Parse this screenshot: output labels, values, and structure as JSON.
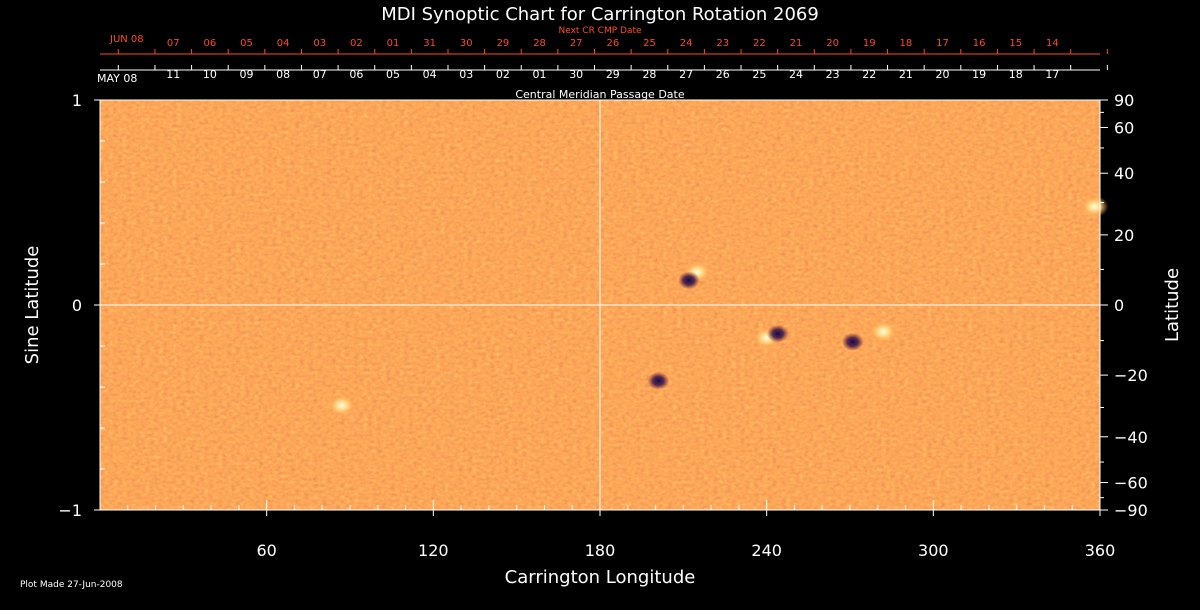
{
  "chart_data": {
    "type": "heatmap",
    "title": "MDI Synoptic Chart for Carrington Rotation 2069",
    "xlabel": "Carrington Longitude",
    "ylabel_left": "Sine Latitude",
    "ylabel_right": "Latitude",
    "xlim": [
      0,
      360
    ],
    "ylim": [
      -1,
      1
    ],
    "x_ticks": [
      60,
      120,
      180,
      240,
      300,
      360
    ],
    "y_ticks_left": [
      {
        "v": 1,
        "label": "1"
      },
      {
        "v": 0,
        "label": "0"
      },
      {
        "v": -1,
        "label": "−1"
      }
    ],
    "y_ticks_right": [
      "90",
      "60",
      "40",
      "20",
      "0",
      "−20",
      "−40",
      "−60",
      "−90"
    ],
    "top_axis_label": "Central Meridian Passage Date",
    "top_axis_start_label": "MAY 08",
    "top_axis_dates": [
      "11",
      "10",
      "09",
      "08",
      "07",
      "06",
      "05",
      "04",
      "03",
      "02",
      "01",
      "30",
      "29",
      "28",
      "27",
      "26",
      "25",
      "24",
      "23",
      "22",
      "21",
      "20",
      "19",
      "18",
      "17"
    ],
    "next_axis_label": "Next CR CMP Date",
    "next_axis_start_label": "JUN 08",
    "next_axis_dates": [
      "07",
      "06",
      "05",
      "04",
      "03",
      "02",
      "01",
      "31",
      "30",
      "29",
      "28",
      "27",
      "26",
      "25",
      "24",
      "23",
      "22",
      "21",
      "20",
      "19",
      "18",
      "17",
      "16",
      "15",
      "14"
    ],
    "grid_lines": {
      "x": 180,
      "y": 0
    },
    "colors": {
      "background": "#000000",
      "field": "#f0581a",
      "positive": "#fff3b0",
      "negative": "#1a1050",
      "next_axis": "#ff4a1c"
    },
    "features": [
      {
        "lon": 215,
        "sinlat": 0.16,
        "polarity": "positive",
        "label": ""
      },
      {
        "lon": 212,
        "sinlat": 0.12,
        "polarity": "negative",
        "label": ""
      },
      {
        "lon": 240,
        "sinlat": -0.16,
        "polarity": "positive",
        "label": ""
      },
      {
        "lon": 244,
        "sinlat": -0.14,
        "polarity": "negative",
        "label": ""
      },
      {
        "lon": 271,
        "sinlat": -0.18,
        "polarity": "negative",
        "label": ""
      },
      {
        "lon": 282,
        "sinlat": -0.13,
        "polarity": "positive",
        "label": ""
      },
      {
        "lon": 201,
        "sinlat": -0.37,
        "polarity": "negative",
        "label": ""
      },
      {
        "lon": 87,
        "sinlat": -0.49,
        "polarity": "positive",
        "label": ""
      },
      {
        "lon": 358,
        "sinlat": 0.48,
        "polarity": "positive",
        "label": ""
      }
    ]
  },
  "credit": "Plot Made 27-Jun-2008"
}
